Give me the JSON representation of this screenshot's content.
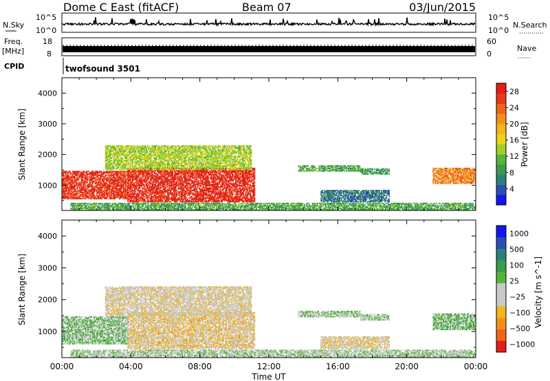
{
  "header": {
    "title": "Dome C East (fitACF)",
    "beam": "Beam 07",
    "date": "03/Jun/2015"
  },
  "top_panels": {
    "nsky_label": "N.Sky",
    "nsky_ticks": [
      "10^5",
      "10^0"
    ],
    "nsearch_label": "N.Search",
    "nsearch_ticks": [
      "10^5",
      "10^0"
    ],
    "freq_label": "Freq.",
    "freq_unit": "[MHz]",
    "freq_ticks": [
      "18",
      "8"
    ],
    "nave_label": "Nave",
    "nave_ticks": [
      "60",
      "0"
    ],
    "cpid_label": "CPID",
    "cpid_value": "twofsound 3501"
  },
  "chart_data": [
    {
      "type": "heatmap",
      "title": "",
      "xlabel": "Time UT",
      "ylabel": "Slant Range [km]",
      "xlim": [
        0,
        24
      ],
      "ylim": [
        180,
        4500
      ],
      "x_tick_labels": [
        "00:00",
        "04:00",
        "08:00",
        "12:00",
        "16:00",
        "20:00",
        "00:00"
      ],
      "y_tick_labels": [
        "1000",
        "2000",
        "3000",
        "4000"
      ],
      "colorbar": {
        "label": "Power [dB]",
        "ticks": [
          "4",
          "8",
          "12",
          "16",
          "20",
          "24",
          "28"
        ],
        "range": [
          0,
          30
        ],
        "colors": [
          "#1515ee",
          "#2a4fb0",
          "#2f7f7f",
          "#3c9a4a",
          "#55b53a",
          "#9ed12a",
          "#e8d21a",
          "#f2b51a",
          "#f4901a",
          "#f0651a",
          "#e6381a",
          "#e01e1a"
        ]
      },
      "regions": [
        {
          "t0": 0.0,
          "t1": 3.8,
          "r0": 550,
          "r1": 1450,
          "value": 27
        },
        {
          "t0": 3.8,
          "t1": 11.2,
          "r0": 450,
          "r1": 1550,
          "value": 28
        },
        {
          "t0": 2.5,
          "t1": 11.0,
          "r0": 1500,
          "r1": 2300,
          "value": 14
        },
        {
          "t0": 13.7,
          "t1": 17.3,
          "r0": 1450,
          "r1": 1650,
          "value": 10
        },
        {
          "t0": 17.3,
          "t1": 19.0,
          "r0": 1350,
          "r1": 1520,
          "value": 9
        },
        {
          "t0": 21.5,
          "t1": 24.0,
          "r0": 1050,
          "r1": 1550,
          "value": 22
        },
        {
          "t0": 15.0,
          "t1": 19.0,
          "r0": 450,
          "r1": 850,
          "value": 6
        },
        {
          "t0": 0.5,
          "t1": 24.0,
          "r0": 190,
          "r1": 420,
          "value": 10
        }
      ]
    },
    {
      "type": "heatmap",
      "title": "",
      "xlabel": "Time UT",
      "ylabel": "Slant Range [km]",
      "xlim": [
        0,
        24
      ],
      "ylim": [
        180,
        4500
      ],
      "x_tick_labels": [
        "00:00",
        "04:00",
        "08:00",
        "12:00",
        "16:00",
        "20:00",
        "00:00"
      ],
      "y_tick_labels": [
        "1000",
        "2000",
        "3000",
        "4000"
      ],
      "colorbar": {
        "label": "Velocity [m s^-1]",
        "ticks": [
          "1000",
          "500",
          "100",
          "25",
          "−25",
          "−100",
          "−500",
          "−1000"
        ],
        "range": [
          -1200,
          1200
        ],
        "colors": [
          "#e01e1a",
          "#f0651a",
          "#f4901a",
          "#f2b51a",
          "#c8c8c8",
          "#c8c8c8",
          "#55b53a",
          "#3c9a4a",
          "#2f7f7f",
          "#2a4fb0",
          "#1515ee"
        ]
      },
      "regions": [
        {
          "t0": 0.0,
          "t1": 3.8,
          "r0": 600,
          "r1": 1450,
          "value": 150
        },
        {
          "t0": 3.8,
          "t1": 11.2,
          "r0": 450,
          "r1": 1600,
          "value": -300
        },
        {
          "t0": 2.5,
          "t1": 11.0,
          "r0": 1500,
          "r1": 2400,
          "value": -200
        },
        {
          "t0": 13.7,
          "t1": 17.3,
          "r0": 1450,
          "r1": 1650,
          "value": 80
        },
        {
          "t0": 17.3,
          "t1": 19.0,
          "r0": 1350,
          "r1": 1520,
          "value": 60
        },
        {
          "t0": 21.5,
          "t1": 24.0,
          "r0": 1050,
          "r1": 1550,
          "value": 200
        },
        {
          "t0": 15.0,
          "t1": 19.0,
          "r0": 450,
          "r1": 850,
          "value": -250
        },
        {
          "t0": 0.5,
          "t1": 24.0,
          "r0": 190,
          "r1": 420,
          "value": 20
        }
      ]
    }
  ]
}
